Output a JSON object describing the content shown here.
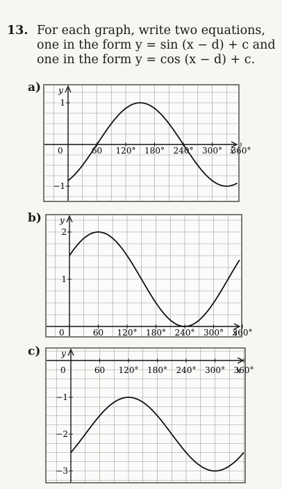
{
  "question": {
    "number": "13.",
    "line1": "For each graph, write two equations,",
    "line2": "one in the form y = sin (x − d) + c and",
    "line3": "one in the form y = cos (x − d) + c."
  },
  "graphs": [
    {
      "label": "a)",
      "y_axis_label": "y",
      "x_axis_label": "x",
      "origin_label": "0",
      "x_ticks": [
        "60",
        "120°",
        "180°",
        "240°",
        "300°",
        "360°"
      ],
      "y_ticks": [
        "1",
        "−1"
      ],
      "curve": {
        "function": "sin",
        "d": 60,
        "c": 0,
        "amplitude": 1
      }
    },
    {
      "label": "b)",
      "y_axis_label": "y",
      "x_axis_label": "x",
      "origin_label": "0",
      "x_ticks": [
        "60",
        "120°",
        "180°",
        "240°",
        "300°",
        "360°"
      ],
      "y_ticks": [
        "2",
        "1"
      ],
      "curve": {
        "function": "sin",
        "d": -30,
        "c": 1,
        "amplitude": 1
      }
    },
    {
      "label": "c)",
      "y_axis_label": "y",
      "x_axis_label": "x",
      "origin_label": "0",
      "x_ticks": [
        "60",
        "120°",
        "180°",
        "240°",
        "300°",
        "360°"
      ],
      "y_ticks": [
        "−1",
        "−2",
        "−3"
      ],
      "curve": {
        "function": "sin",
        "d": 30,
        "c": -2,
        "amplitude": 1
      }
    }
  ]
}
